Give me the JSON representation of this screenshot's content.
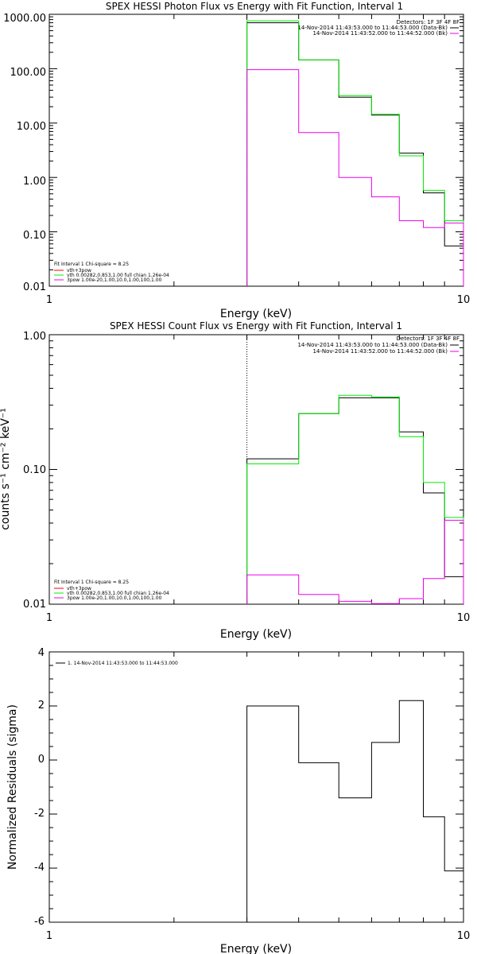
{
  "colors": {
    "black": "#000000",
    "green": "#00ee00",
    "magenta": "#ee00ee",
    "red": "#ff0000"
  },
  "panels": {
    "photon": {
      "title": "SPEX HESSI Photon Flux vs Energy with Fit Function, Interval 1",
      "xlabel": "Energy (keV)",
      "ylabel": "",
      "xticks": [
        "1",
        "10"
      ],
      "yticks": [
        "1000.00",
        "100.00",
        "10.00",
        "1.00",
        "0.10",
        "0.01"
      ],
      "info": [
        "Detectors: 1F 3F 4F 8F",
        "14-Nov-2014 11:43:53.000 to 11:44:53.000 (Data-Bk)",
        "14-Nov-2014 11:43:52.000 to 11:44:52.000 (Bk)"
      ],
      "legend": [
        "Fit Interval 1    Chi-square = 8.25",
        "vth+3pow",
        "vth 0.00282,0.853,1.00  full chian 1.26e-04",
        "3pow 1.00e-20,1.00,10.0,1.00,100,1.00"
      ]
    },
    "count": {
      "title": "SPEX HESSI Count Flux vs Energy with Fit Function, Interval 1",
      "xlabel": "Energy (keV)",
      "ylabel": "counts s⁻¹ cm⁻² keV⁻¹",
      "xticks": [
        "1",
        "10"
      ],
      "yticks": [
        "1.00",
        "0.10",
        "0.01"
      ],
      "info": [
        "Detectors: 1F 3F 4F 8F",
        "14-Nov-2014 11:43:53.000 to 11:44:53.000 (Data-Bk)",
        "14-Nov-2014 11:43:52.000 to 11:44:52.000 (Bk)"
      ],
      "legend": [
        "Fit Interval 1    Chi-square = 8.25",
        "vth+3pow",
        "vth 0.00282,0.853,1.00  full chian 1.26e-04",
        "3pow 1.00e-20,1.00,10.0,1.00,100,1.00"
      ]
    },
    "resid": {
      "title": "",
      "xlabel": "Energy (keV)",
      "ylabel": "Normalized Residuals (sigma)",
      "xticks": [
        "1",
        "10"
      ],
      "yticks": [
        "4",
        "2",
        "0",
        "-2",
        "-4",
        "-6"
      ],
      "legend": [
        "1. 14-Nov-2014 11:43:53.000 to 11:44:53.000"
      ]
    }
  },
  "chart_data": [
    {
      "type": "line",
      "step": true,
      "title": "SPEX HESSI Photon Flux vs Energy with Fit Function, Interval 1",
      "xlabel": "Energy (keV)",
      "ylabel": "",
      "xscale": "log",
      "yscale": "log",
      "xlim": [
        1,
        10
      ],
      "ylim": [
        0.01,
        1000
      ],
      "marker_x": 3,
      "bin_edges": [
        3,
        4,
        5,
        6,
        7,
        8,
        9,
        10
      ],
      "series": [
        {
          "color": "#000000",
          "values": [
            700,
            145,
            30,
            14,
            2.8,
            0.52,
            0.055
          ]
        },
        {
          "color": "#00ee00",
          "values": [
            760,
            145,
            32,
            14.5,
            2.5,
            0.58,
            0.16
          ]
        },
        {
          "color": "#ee00ee",
          "values": [
            96,
            6.7,
            1.0,
            0.44,
            0.16,
            0.12,
            0.145
          ]
        }
      ],
      "legend_position": "bottom-left"
    },
    {
      "type": "line",
      "step": true,
      "title": "SPEX HESSI Count Flux vs Energy with Fit Function, Interval 1",
      "xlabel": "Energy (keV)",
      "ylabel": "counts s⁻¹ cm⁻² keV⁻¹",
      "xscale": "log",
      "yscale": "log",
      "xlim": [
        1,
        10
      ],
      "ylim": [
        0.01,
        1.0
      ],
      "marker_x": 3,
      "bin_edges": [
        3,
        4,
        5,
        6,
        7,
        8,
        9,
        10
      ],
      "series": [
        {
          "color": "#000000",
          "values": [
            0.12,
            0.26,
            0.34,
            0.34,
            0.19,
            0.067,
            0.016
          ]
        },
        {
          "color": "#00ee00",
          "values": [
            0.11,
            0.26,
            0.355,
            0.345,
            0.175,
            0.08,
            0.044
          ]
        },
        {
          "color": "#ee00ee",
          "values": [
            0.0165,
            0.0118,
            0.0105,
            0.0101,
            0.011,
            0.0155,
            0.042
          ]
        }
      ],
      "legend_position": "bottom-left"
    },
    {
      "type": "line",
      "step": true,
      "title": "",
      "xlabel": "Energy (keV)",
      "ylabel": "Normalized Residuals (sigma)",
      "xscale": "log",
      "yscale": "linear",
      "xlim": [
        1,
        10
      ],
      "ylim": [
        -6,
        4
      ],
      "bin_edges": [
        3,
        4,
        5,
        6,
        7,
        8,
        9,
        10
      ],
      "series": [
        {
          "color": "#000000",
          "values": [
            2.0,
            -0.1,
            -1.4,
            0.65,
            2.2,
            -2.1,
            -4.1
          ]
        }
      ],
      "legend_position": "top-left"
    }
  ]
}
